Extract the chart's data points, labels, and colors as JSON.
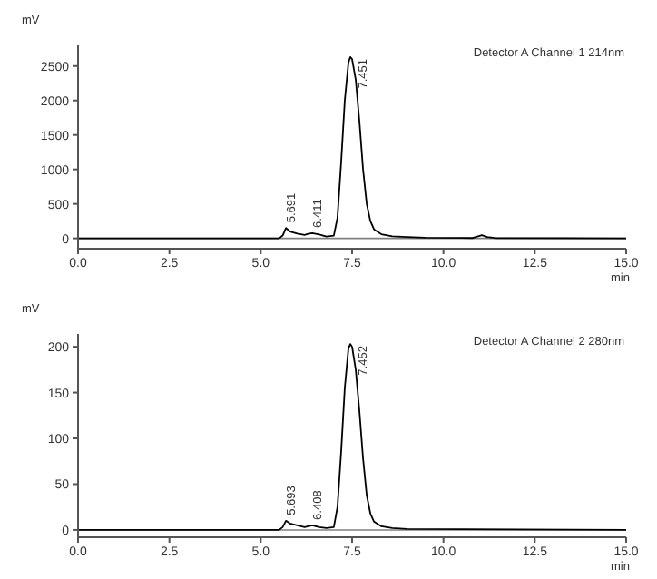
{
  "chart_data": [
    {
      "type": "line",
      "title": "Detector A Channel 1 214nm",
      "xlabel": "min",
      "ylabel": "mV",
      "xlim": [
        0,
        15
      ],
      "ylim": [
        -150,
        2800
      ],
      "xticks": [
        {
          "value": 0,
          "label": "0.0"
        },
        {
          "value": 2.5,
          "label": "2.5"
        },
        {
          "value": 5,
          "label": "5.0"
        },
        {
          "value": 7.5,
          "label": "7.5"
        },
        {
          "value": 10,
          "label": "10.0"
        },
        {
          "value": 12.5,
          "label": "12.5"
        },
        {
          "value": 15,
          "label": "15.0"
        }
      ],
      "yticks": [
        0,
        500,
        1000,
        1500,
        2000,
        2500
      ],
      "marker": "none",
      "line_style": "solid",
      "ref_lines": [
        {
          "axis": "y",
          "value": 0,
          "color": "#808080"
        }
      ],
      "annotations": [
        {
          "text": "5.691",
          "x": 5.691,
          "y": 150
        },
        {
          "text": "6.411",
          "x": 6.411,
          "y": 75
        },
        {
          "text": "7.451",
          "x": 7.451,
          "y": 2630
        }
      ],
      "series": [
        {
          "color": "#000000",
          "x": [
            0,
            5.5,
            5.6,
            5.69,
            5.8,
            6.0,
            6.2,
            6.3,
            6.41,
            6.6,
            6.8,
            7.0,
            7.1,
            7.2,
            7.3,
            7.4,
            7.45,
            7.5,
            7.6,
            7.7,
            7.8,
            7.9,
            8.0,
            8.1,
            8.3,
            8.6,
            9.0,
            9.5,
            10.8,
            10.95,
            11.05,
            11.2,
            11.4,
            15
          ],
          "values": [
            0,
            0,
            40,
            150,
            100,
            70,
            50,
            65,
            75,
            55,
            25,
            40,
            300,
            1100,
            2000,
            2550,
            2630,
            2600,
            2300,
            1700,
            1000,
            500,
            250,
            130,
            60,
            30,
            20,
            10,
            5,
            30,
            45,
            20,
            5,
            0
          ]
        }
      ]
    },
    {
      "type": "line",
      "title": "Detector A Channel 2 280nm",
      "xlabel": "min",
      "ylabel": "mV",
      "xlim": [
        0,
        15
      ],
      "ylim": [
        -8,
        214
      ],
      "xticks": [
        {
          "value": 0,
          "label": "0.0"
        },
        {
          "value": 2.5,
          "label": "2.5"
        },
        {
          "value": 5,
          "label": "5.0"
        },
        {
          "value": 7.5,
          "label": "7.5"
        },
        {
          "value": 10,
          "label": "10.0"
        },
        {
          "value": 12.5,
          "label": "12.5"
        },
        {
          "value": 15,
          "label": "15.0"
        }
      ],
      "yticks": [
        0,
        50,
        100,
        150,
        200
      ],
      "marker": "none",
      "line_style": "solid",
      "ref_lines": [
        {
          "axis": "y",
          "value": 0,
          "color": "#808080"
        }
      ],
      "annotations": [
        {
          "text": "5.693",
          "x": 5.693,
          "y": 10
        },
        {
          "text": "6.408",
          "x": 6.408,
          "y": 5
        },
        {
          "text": "7.452",
          "x": 7.452,
          "y": 203
        }
      ],
      "series": [
        {
          "color": "#000000",
          "x": [
            0,
            5.5,
            5.6,
            5.69,
            5.8,
            6.0,
            6.2,
            6.3,
            6.41,
            6.6,
            6.8,
            7.0,
            7.1,
            7.2,
            7.3,
            7.4,
            7.45,
            7.5,
            7.6,
            7.7,
            7.8,
            7.9,
            8.0,
            8.1,
            8.3,
            8.6,
            9.0,
            15
          ],
          "values": [
            0,
            0,
            3,
            10,
            7,
            5,
            3,
            4,
            5,
            3,
            2,
            3,
            25,
            85,
            155,
            198,
            203,
            200,
            175,
            130,
            78,
            38,
            18,
            9,
            4,
            2,
            1,
            0
          ]
        }
      ]
    }
  ]
}
